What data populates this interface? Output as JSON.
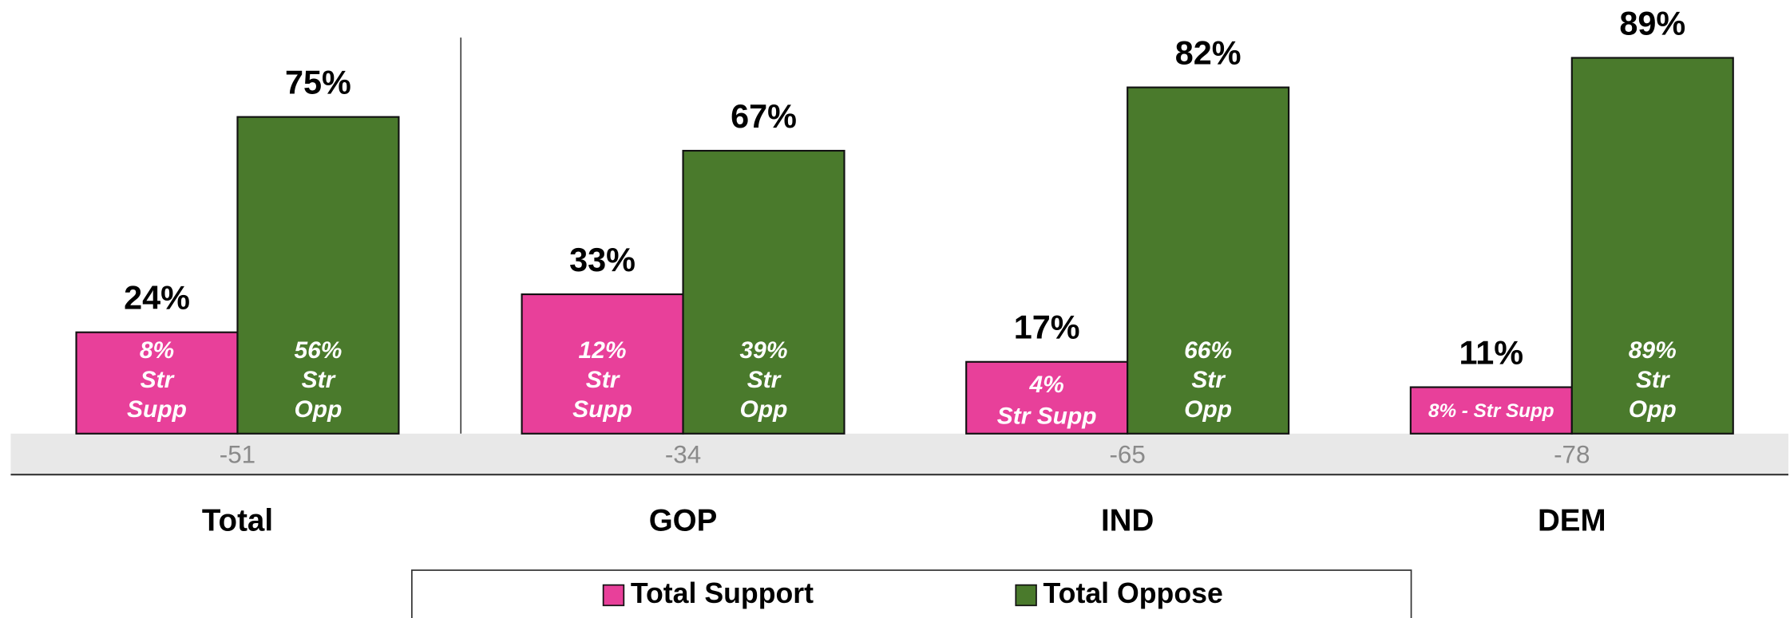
{
  "chart_data": {
    "type": "bar",
    "categories": [
      "Total",
      "GOP",
      "IND",
      "DEM"
    ],
    "series": [
      {
        "name": "Total Support",
        "color": "#e8409a",
        "values": [
          24,
          33,
          17,
          11
        ],
        "value_labels": [
          "24%",
          "33%",
          "17%",
          "11%"
        ],
        "inner_labels": [
          [
            "8%",
            "Str",
            "Supp"
          ],
          [
            "12%",
            "Str",
            "Supp"
          ],
          [
            "4%",
            "Str Supp"
          ],
          [
            "8% - Str Supp"
          ]
        ]
      },
      {
        "name": "Total Oppose",
        "color": "#4a7a2c",
        "values": [
          75,
          67,
          82,
          89
        ],
        "value_labels": [
          "75%",
          "67%",
          "82%",
          "89%"
        ],
        "inner_labels": [
          [
            "56%",
            "Str",
            "Opp"
          ],
          [
            "39%",
            "Str",
            "Opp"
          ],
          [
            "66%",
            "Str",
            "Opp"
          ],
          [
            "89%",
            "Str",
            "Opp"
          ]
        ]
      }
    ],
    "net": [
      -51,
      -34,
      -65,
      -78
    ],
    "ylim": [
      0,
      100
    ],
    "legend": "bottom"
  }
}
